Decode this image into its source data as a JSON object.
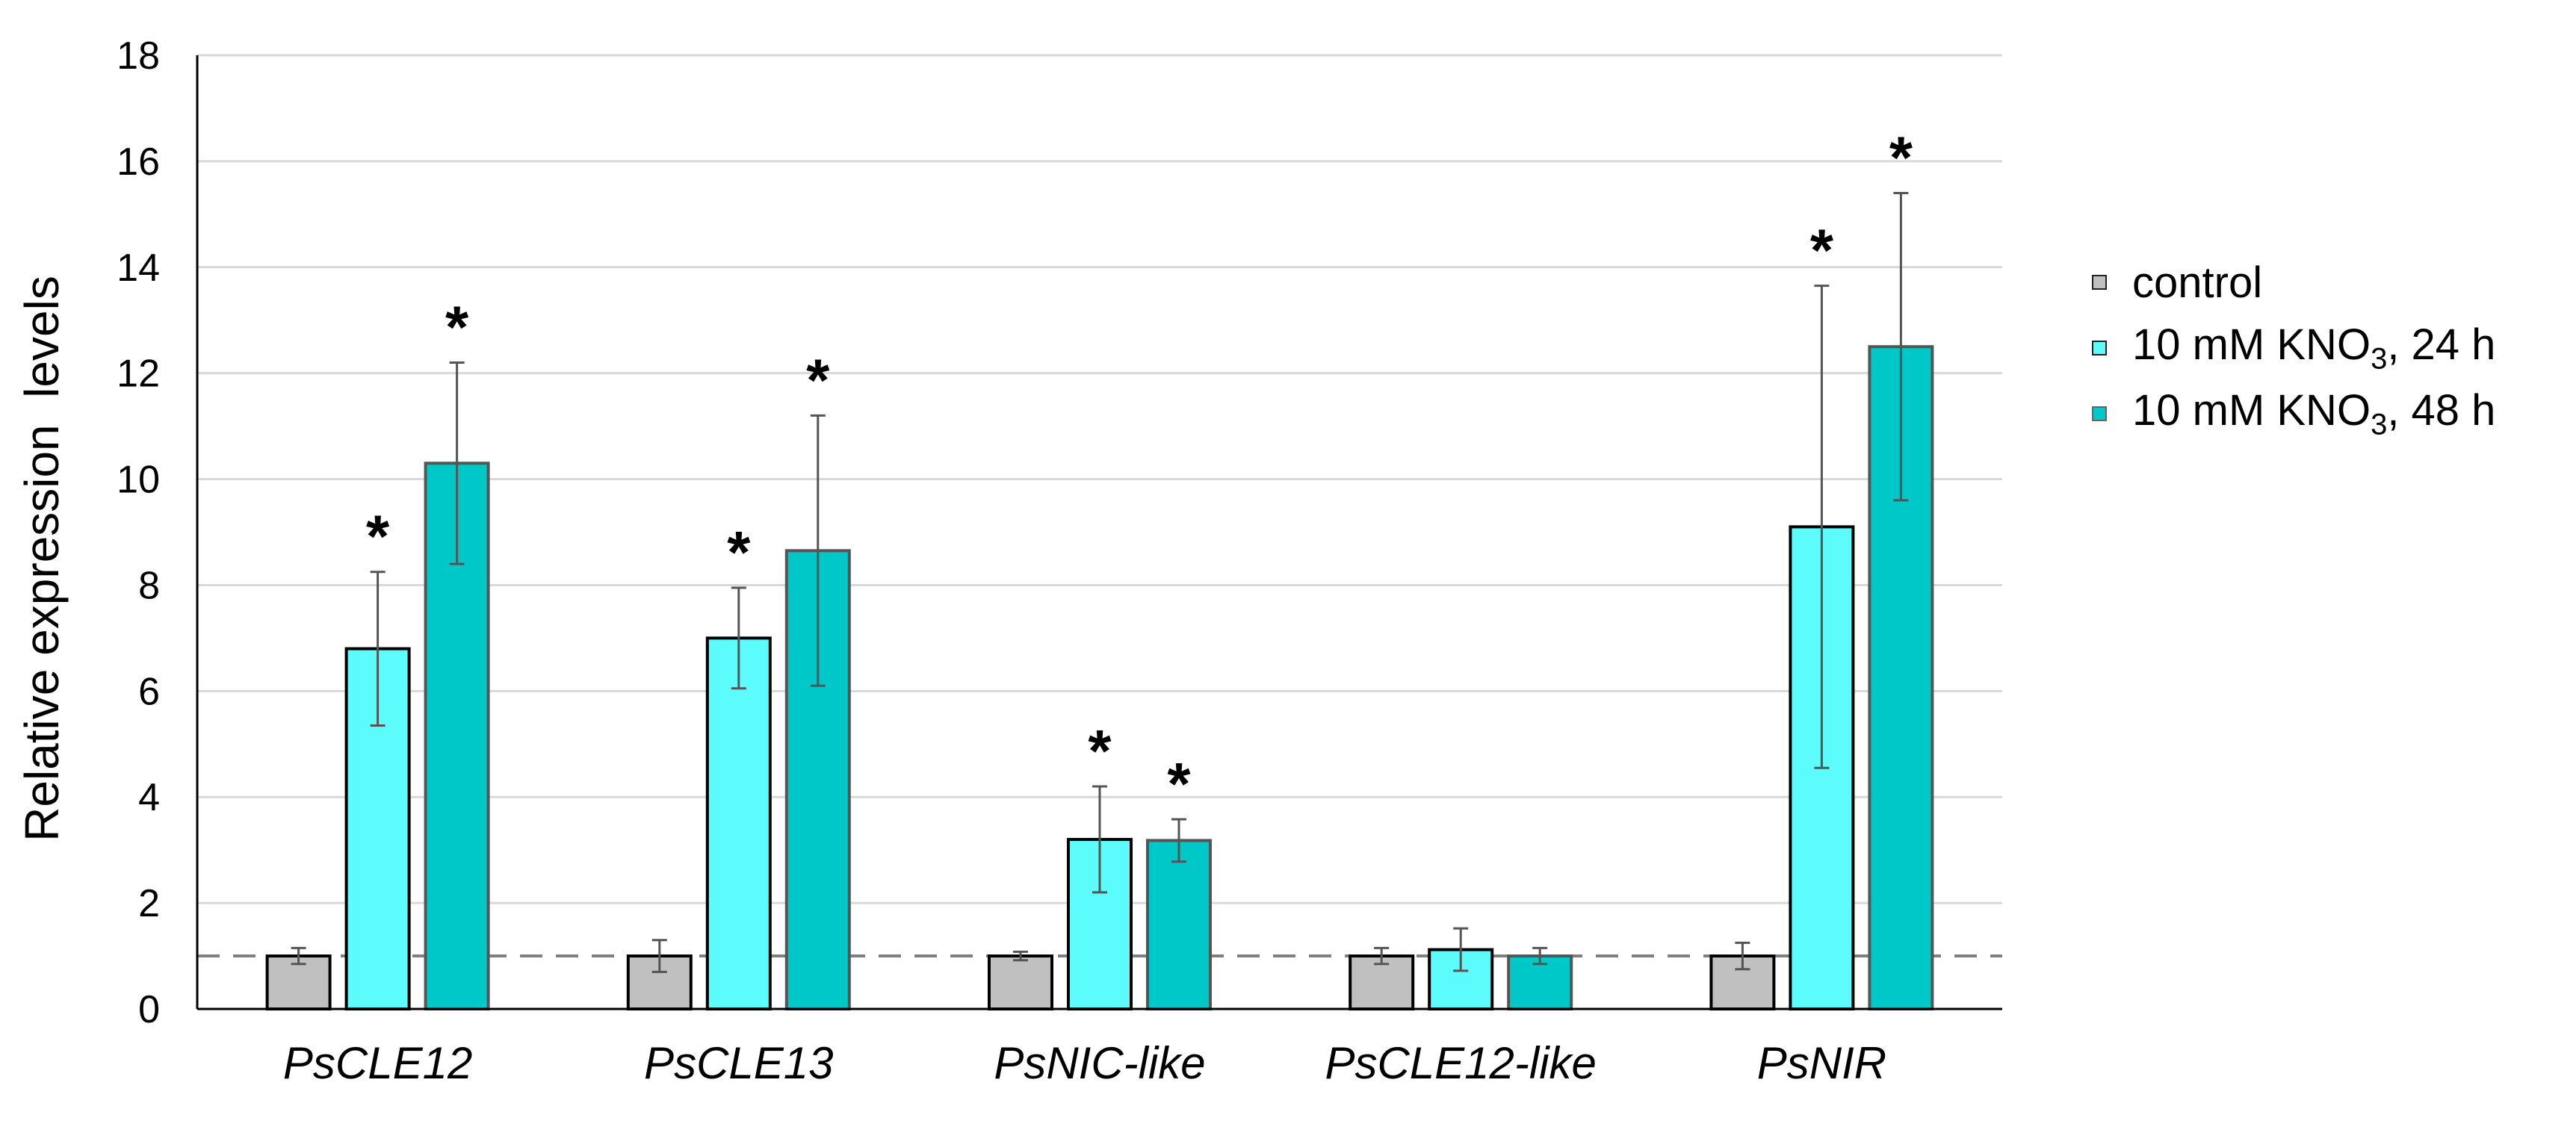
{
  "chart_data": {
    "type": "bar",
    "title": "",
    "xlabel": "",
    "ylabel": "Relative expression  levels",
    "ylim": [
      0,
      18
    ],
    "yticks": [
      "0",
      "2",
      "4",
      "6",
      "8",
      "10",
      "12",
      "14",
      "16",
      "18"
    ],
    "grid": true,
    "legend_position": "right",
    "reference_line": 1,
    "categories": [
      "PsCLE12",
      "PsCLE13",
      "PsNIC-like",
      "PsCLE12-like",
      "PsNIR"
    ],
    "series": [
      {
        "name": "control",
        "color": "#c0c0c0",
        "values": [
          1.0,
          1.0,
          1.0,
          1.0,
          1.0
        ],
        "errors": [
          0.15,
          0.3,
          0.08,
          0.15,
          0.25
        ],
        "significant": [
          false,
          false,
          false,
          false,
          false
        ]
      },
      {
        "name_prefix": "10 mM KNO",
        "name_sub": "3",
        "name_suffix": ", 24 h",
        "color": "#5cfcfc",
        "values": [
          6.8,
          7.0,
          3.2,
          1.12,
          9.1
        ],
        "errors": [
          1.45,
          0.95,
          1.0,
          0.4,
          4.55
        ],
        "significant": [
          true,
          true,
          true,
          false,
          true
        ]
      },
      {
        "name_prefix": "10 mM KNO",
        "name_sub": "3",
        "name_suffix": ", 48 h",
        "color": "#00c8c8",
        "values": [
          10.3,
          8.65,
          3.18,
          1.0,
          12.5
        ],
        "errors": [
          1.9,
          2.55,
          0.4,
          0.15,
          2.9
        ],
        "significant": [
          true,
          true,
          true,
          false,
          true
        ]
      }
    ],
    "significance_marker": "*"
  }
}
